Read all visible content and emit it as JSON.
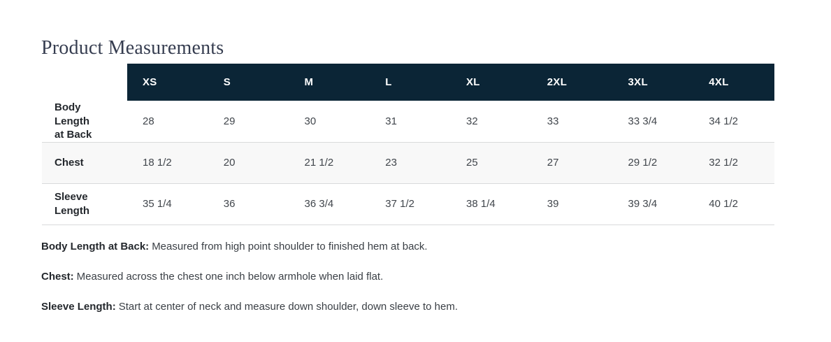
{
  "page_title": "Product Measurements",
  "colors": {
    "header_bg": "#0b2536",
    "header_text": "#ffffff",
    "alt_row_bg": "#f8f8f8",
    "divider": "#d9dadb",
    "title_text": "#363d50",
    "label_text": "#24282d",
    "value_text": "#41464c"
  },
  "chart_data": {
    "type": "table",
    "title": "Product Measurements",
    "columns": [
      "XS",
      "S",
      "M",
      "L",
      "XL",
      "2XL",
      "3XL",
      "4XL"
    ],
    "rows": [
      {
        "label": "Body Length\nat Back",
        "values": [
          "28",
          "29",
          "30",
          "31",
          "32",
          "33",
          "33 3/4",
          "34 1/2"
        ]
      },
      {
        "label": "Chest",
        "values": [
          "18 1/2",
          "20",
          "21 1/2",
          "23",
          "25",
          "27",
          "29 1/2",
          "32 1/2"
        ]
      },
      {
        "label": "Sleeve\nLength",
        "values": [
          "35 1/4",
          "36",
          "36 3/4",
          "37 1/2",
          "38 1/4",
          "39",
          "39 3/4",
          "40 1/2"
        ]
      }
    ]
  },
  "notes": [
    {
      "term": "Body Length at Back:",
      "text": "Measured from high point shoulder to finished hem at back."
    },
    {
      "term": "Chest:",
      "text": "Measured across the chest one inch below armhole when laid flat."
    },
    {
      "term": "Sleeve Length:",
      "text": "Start at center of neck and measure down shoulder, down sleeve to hem."
    }
  ]
}
